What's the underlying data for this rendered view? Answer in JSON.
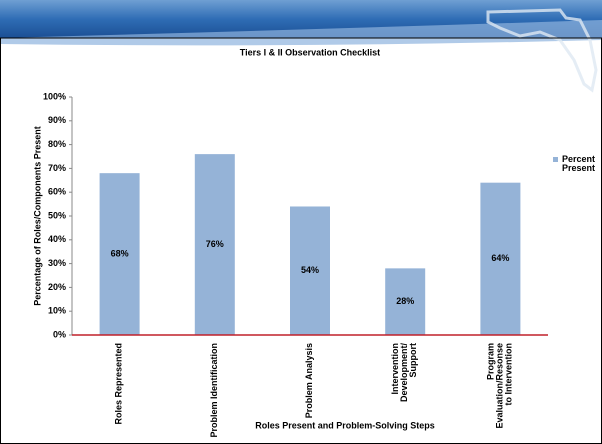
{
  "chart_data": {
    "type": "bar",
    "title": "Tiers I & II Observation Checklist",
    "x_label": "Roles Present and Problem-Solving Steps",
    "y_label": "Percentage of Roles/Components Present",
    "categories": [
      "Roles Represented",
      "Problem Identification",
      "Problem Analysis",
      "Intervention\nDevelopment/\nSupport",
      "Program\nEvaluation/Resonse\nto Intervention"
    ],
    "series": [
      {
        "name": "Percent Present",
        "color": "#95b3d7",
        "values": [
          68,
          76,
          54,
          28,
          64
        ],
        "value_labels": [
          "68%",
          "76%",
          "54%",
          "28%",
          "64%"
        ]
      }
    ],
    "ylim": [
      0,
      100
    ],
    "yticks": [
      {
        "value": 0,
        "label": "0%"
      },
      {
        "value": 10,
        "label": "10%"
      },
      {
        "value": 20,
        "label": "20%"
      },
      {
        "value": 30,
        "label": "30%"
      },
      {
        "value": 40,
        "label": "40%"
      },
      {
        "value": 50,
        "label": "50%"
      },
      {
        "value": 60,
        "label": "60%"
      },
      {
        "value": 70,
        "label": "70%"
      },
      {
        "value": 80,
        "label": "80%"
      },
      {
        "value": 90,
        "label": "90%"
      },
      {
        "value": 100,
        "label": "100%"
      }
    ],
    "legend": "right"
  }
}
